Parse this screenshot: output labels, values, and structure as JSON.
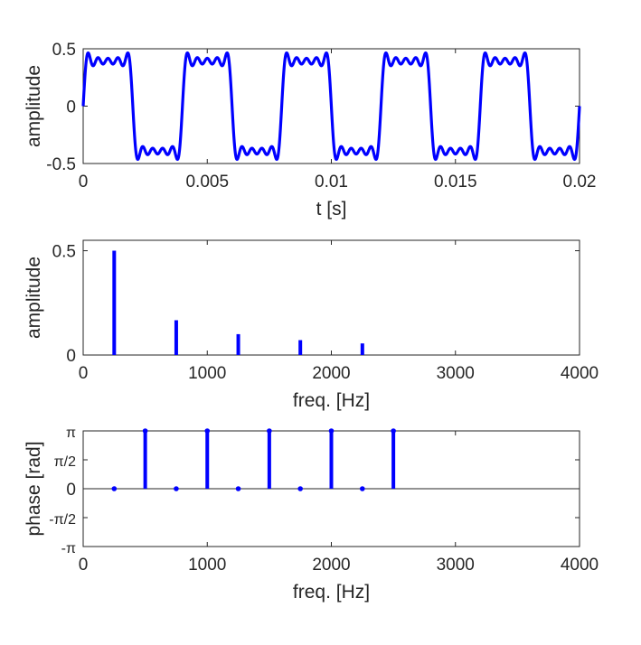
{
  "chart_data": [
    {
      "type": "line",
      "xlabel": "t [s]",
      "ylabel": "amplitude",
      "xlim": [
        0,
        0.02
      ],
      "ylim": [
        -0.5,
        0.5
      ],
      "xticks": [
        0,
        0.005,
        0.01,
        0.015,
        0.02
      ],
      "xtick_labels": [
        "0",
        "0.005",
        "0.01",
        "0.015",
        "0.02"
      ],
      "yticks": [
        -0.5,
        0,
        0.5
      ],
      "ytick_labels": [
        "-0.5",
        "0",
        "0.5"
      ],
      "series": [
        {
          "harmonics_hz": [
            250,
            750,
            1250,
            1750,
            2250
          ],
          "amplitudes": [
            0.5,
            0.1667,
            0.1,
            0.0714,
            0.0556
          ],
          "phases_rad": [
            0,
            0,
            0,
            0,
            0
          ]
        }
      ],
      "color": "#0000ff"
    },
    {
      "type": "stem",
      "xlabel": "freq. [Hz]",
      "ylabel": "amplitude",
      "xlim": [
        0,
        4000
      ],
      "ylim": [
        0,
        0.55
      ],
      "xticks": [
        0,
        1000,
        2000,
        3000,
        4000
      ],
      "xtick_labels": [
        "0",
        "1000",
        "2000",
        "3000",
        "4000"
      ],
      "yticks": [
        0,
        0.5
      ],
      "ytick_labels": [
        "0",
        "0.5"
      ],
      "x": [
        250,
        750,
        1250,
        1750,
        2250
      ],
      "values": [
        0.5,
        0.1667,
        0.1,
        0.0714,
        0.0556
      ],
      "color": "#0000ff"
    },
    {
      "type": "stem",
      "xlabel": "freq. [Hz]",
      "ylabel": "phase [rad]",
      "xlim": [
        0,
        4000
      ],
      "ylim": [
        -3.1416,
        3.1416
      ],
      "xticks": [
        0,
        1000,
        2000,
        3000,
        4000
      ],
      "xtick_labels": [
        "0",
        "1000",
        "2000",
        "3000",
        "4000"
      ],
      "yticks": [
        -3.1416,
        -1.5708,
        0,
        1.5708,
        3.1416
      ],
      "ytick_labels": [
        "-π",
        "-π/2",
        "0",
        "π/2",
        "π"
      ],
      "x": [
        250,
        500,
        750,
        1000,
        1250,
        1500,
        1750,
        2000,
        2250,
        2500
      ],
      "values": [
        0,
        3.1416,
        0,
        3.1416,
        0,
        3.1416,
        0,
        3.1416,
        0,
        3.1416
      ],
      "color": "#0000ff"
    }
  ]
}
